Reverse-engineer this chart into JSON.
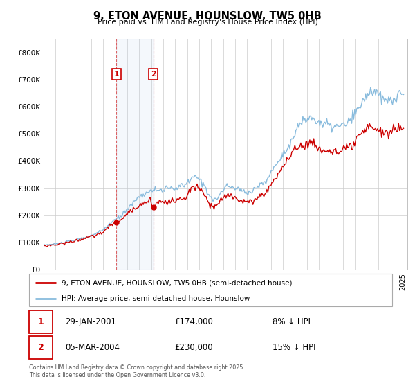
{
  "title": "9, ETON AVENUE, HOUNSLOW, TW5 0HB",
  "subtitle": "Price paid vs. HM Land Registry's House Price Index (HPI)",
  "legend_line1": "9, ETON AVENUE, HOUNSLOW, TW5 0HB (semi-detached house)",
  "legend_line2": "HPI: Average price, semi-detached house, Hounslow",
  "footer": "Contains HM Land Registry data © Crown copyright and database right 2025.\nThis data is licensed under the Open Government Licence v3.0.",
  "price_color": "#cc0000",
  "hpi_color": "#88bbdd",
  "transaction1": {
    "label": "1",
    "date": "29-JAN-2001",
    "price": "£174,000",
    "note": "8% ↓ HPI"
  },
  "transaction2": {
    "label": "2",
    "date": "05-MAR-2004",
    "price": "£230,000",
    "note": "15% ↓ HPI"
  },
  "ylim": [
    0,
    850000
  ],
  "yticks": [
    0,
    100000,
    200000,
    300000,
    400000,
    500000,
    600000,
    700000,
    800000
  ],
  "ytick_labels": [
    "£0",
    "£100K",
    "£200K",
    "£300K",
    "£400K",
    "£500K",
    "£600K",
    "£700K",
    "£800K"
  ],
  "background_color": "#ffffff",
  "grid_color": "#cccccc"
}
